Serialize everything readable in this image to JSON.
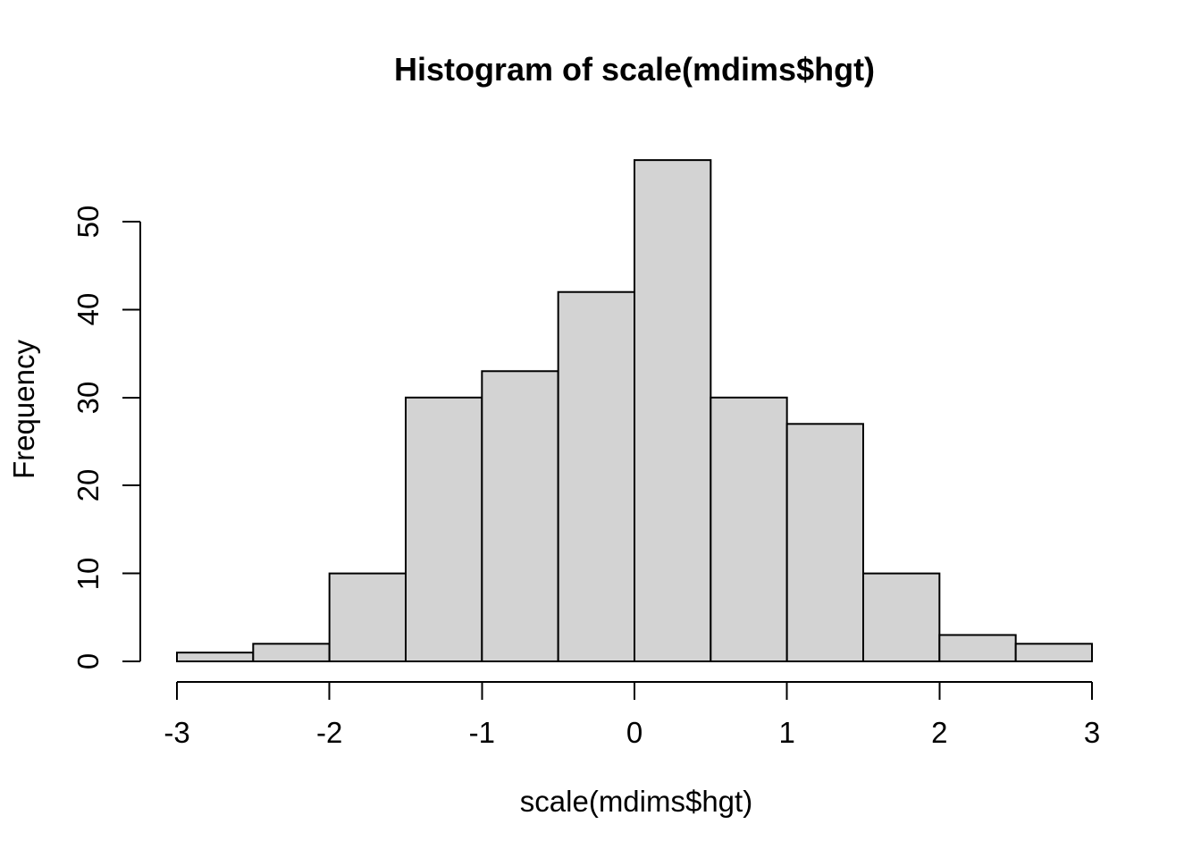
{
  "figure": {
    "background": "#ffffff",
    "text_color": "#000000"
  },
  "chart_data": {
    "type": "bar",
    "subtype": "histogram",
    "title": "Histogram of scale(mdims$hgt)",
    "xlabel": "scale(mdims$hgt)",
    "ylabel": "Frequency",
    "bin_edges": [
      -3,
      -2.5,
      -2,
      -1.5,
      -1,
      -0.5,
      0,
      0.5,
      1,
      1.5,
      2,
      2.5,
      3
    ],
    "counts": [
      1,
      2,
      10,
      30,
      33,
      42,
      57,
      30,
      27,
      10,
      3,
      2
    ],
    "x_ticks": [
      "-3",
      "-2",
      "-1",
      "0",
      "1",
      "2",
      "3"
    ],
    "x_tick_values": [
      -3,
      -2,
      -1,
      0,
      1,
      2,
      3
    ],
    "y_ticks": [
      "0",
      "10",
      "20",
      "30",
      "40",
      "50"
    ],
    "y_tick_values": [
      0,
      10,
      20,
      30,
      40,
      50
    ],
    "xlim": [
      -3,
      3
    ],
    "ylim": [
      0,
      57
    ],
    "grid": false,
    "legend": "none",
    "bar_fill": "#d3d3d3",
    "bar_stroke": "#000000",
    "axis_color": "#000000"
  }
}
